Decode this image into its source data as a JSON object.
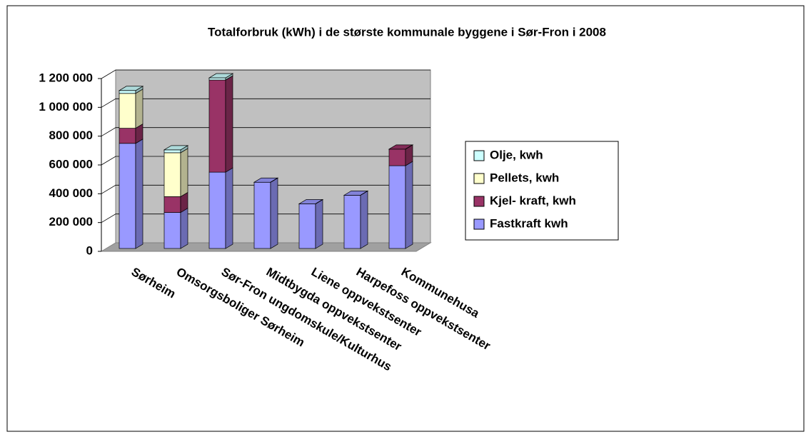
{
  "chart_data": {
    "type": "bar3d_stacked",
    "title": "Totalforbruk (kWh) i de største kommunale byggene i Sør-Fron i 2008",
    "categories": [
      "Sørheim",
      "Omsorgsboliger Sørheim",
      "Sør-Fron ungdomskule/Kulturhus",
      "Midtbygda oppvekstsenter",
      "Liene oppvekstsenter",
      "Harpefoss oppvekstsenter",
      "Kommunehusa"
    ],
    "series": [
      {
        "name": "Fastkraft kwh",
        "color": "#9999ff",
        "values": [
          730000,
          250000,
          530000,
          460000,
          310000,
          370000,
          575000
        ]
      },
      {
        "name": "Kjel- kraft, kwh",
        "color": "#993366",
        "values": [
          105000,
          110000,
          640000,
          0,
          0,
          0,
          115000
        ]
      },
      {
        "name": "Pellets, kwh",
        "color": "#ffffcc",
        "values": [
          242000,
          305000,
          0,
          0,
          0,
          0,
          0
        ]
      },
      {
        "name": "Olje, kwh",
        "color": "#ccffff",
        "values": [
          20000,
          20000,
          15000,
          0,
          0,
          0,
          0
        ]
      }
    ],
    "ylim": [
      0,
      1200000
    ],
    "yticks": [
      0,
      {
        "value": 200000,
        "label": "200 000"
      },
      {
        "value": 400000,
        "label": "400 000"
      },
      {
        "value": 600000,
        "label": "600 000"
      },
      {
        "value": 800000,
        "label": "800 000"
      },
      {
        "value": 1000000,
        "label": "1 000 000"
      },
      {
        "value": 1200000,
        "label": "1 200 000"
      }
    ],
    "grid": true,
    "legend": "right"
  }
}
